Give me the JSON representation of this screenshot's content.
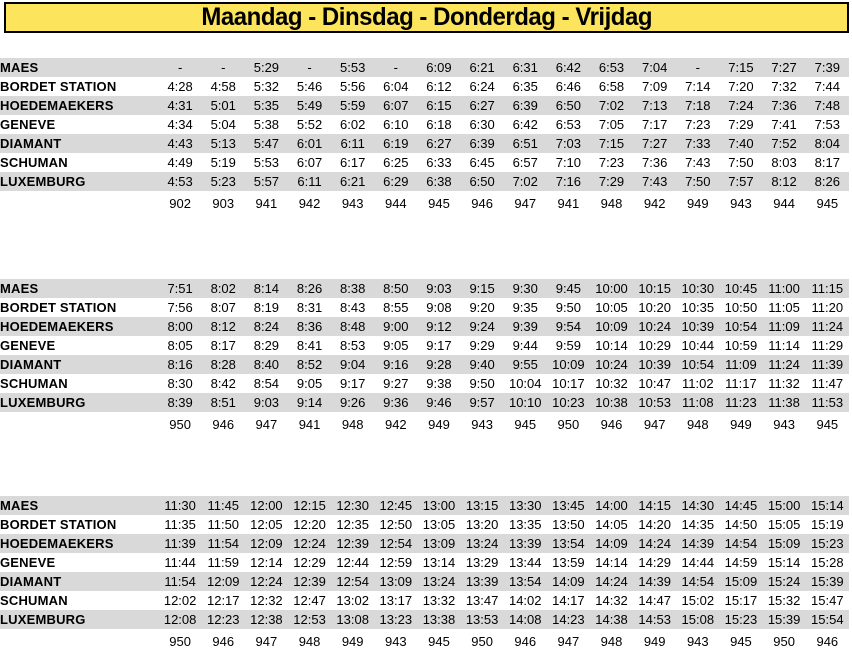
{
  "header": {
    "title": "Maandag - Dinsdag - Donderdag - Vrijdag"
  },
  "colors": {
    "banner_bg": "#FCE45C",
    "banner_border": "#000000",
    "row_alt_bg": "#D9D9D9",
    "text": "#000000"
  },
  "stations": [
    "MAES",
    "BORDET STATION",
    "HOEDEMAEKERS",
    "GENEVE",
    "DIAMANT",
    "SCHUMAN",
    "LUXEMBURG"
  ],
  "tables": [
    {
      "rows": [
        {
          "station": "MAES",
          "times": [
            "-",
            "-",
            "5:29",
            "-",
            "5:53",
            "-",
            "6:09",
            "6:21",
            "6:31",
            "6:42",
            "6:53",
            "7:04",
            "-",
            "7:15",
            "7:27",
            "7:39"
          ]
        },
        {
          "station": "BORDET STATION",
          "times": [
            "4:28",
            "4:58",
            "5:32",
            "5:46",
            "5:56",
            "6:04",
            "6:12",
            "6:24",
            "6:35",
            "6:46",
            "6:58",
            "7:09",
            "7:14",
            "7:20",
            "7:32",
            "7:44"
          ]
        },
        {
          "station": "HOEDEMAEKERS",
          "times": [
            "4:31",
            "5:01",
            "5:35",
            "5:49",
            "5:59",
            "6:07",
            "6:15",
            "6:27",
            "6:39",
            "6:50",
            "7:02",
            "7:13",
            "7:18",
            "7:24",
            "7:36",
            "7:48"
          ]
        },
        {
          "station": "GENEVE",
          "times": [
            "4:34",
            "5:04",
            "5:38",
            "5:52",
            "6:02",
            "6:10",
            "6:18",
            "6:30",
            "6:42",
            "6:53",
            "7:05",
            "7:17",
            "7:23",
            "7:29",
            "7:41",
            "7:53"
          ]
        },
        {
          "station": "DIAMANT",
          "times": [
            "4:43",
            "5:13",
            "5:47",
            "6:01",
            "6:11",
            "6:19",
            "6:27",
            "6:39",
            "6:51",
            "7:03",
            "7:15",
            "7:27",
            "7:33",
            "7:40",
            "7:52",
            "8:04"
          ]
        },
        {
          "station": "SCHUMAN",
          "times": [
            "4:49",
            "5:19",
            "5:53",
            "6:07",
            "6:17",
            "6:25",
            "6:33",
            "6:45",
            "6:57",
            "7:10",
            "7:23",
            "7:36",
            "7:43",
            "7:50",
            "8:03",
            "8:17"
          ]
        },
        {
          "station": "LUXEMBURG",
          "times": [
            "4:53",
            "5:23",
            "5:57",
            "6:11",
            "6:21",
            "6:29",
            "6:38",
            "6:50",
            "7:02",
            "7:16",
            "7:29",
            "7:43",
            "7:50",
            "7:57",
            "8:12",
            "8:26"
          ]
        }
      ],
      "route_numbers": [
        "902",
        "903",
        "941",
        "942",
        "943",
        "944",
        "945",
        "946",
        "947",
        "941",
        "948",
        "942",
        "949",
        "943",
        "944",
        "945"
      ]
    },
    {
      "rows": [
        {
          "station": "MAES",
          "times": [
            "7:51",
            "8:02",
            "8:14",
            "8:26",
            "8:38",
            "8:50",
            "9:03",
            "9:15",
            "9:30",
            "9:45",
            "10:00",
            "10:15",
            "10:30",
            "10:45",
            "11:00",
            "11:15"
          ]
        },
        {
          "station": "BORDET STATION",
          "times": [
            "7:56",
            "8:07",
            "8:19",
            "8:31",
            "8:43",
            "8:55",
            "9:08",
            "9:20",
            "9:35",
            "9:50",
            "10:05",
            "10:20",
            "10:35",
            "10:50",
            "11:05",
            "11:20"
          ]
        },
        {
          "station": "HOEDEMAEKERS",
          "times": [
            "8:00",
            "8:12",
            "8:24",
            "8:36",
            "8:48",
            "9:00",
            "9:12",
            "9:24",
            "9:39",
            "9:54",
            "10:09",
            "10:24",
            "10:39",
            "10:54",
            "11:09",
            "11:24"
          ]
        },
        {
          "station": "GENEVE",
          "times": [
            "8:05",
            "8:17",
            "8:29",
            "8:41",
            "8:53",
            "9:05",
            "9:17",
            "9:29",
            "9:44",
            "9:59",
            "10:14",
            "10:29",
            "10:44",
            "10:59",
            "11:14",
            "11:29"
          ]
        },
        {
          "station": "DIAMANT",
          "times": [
            "8:16",
            "8:28",
            "8:40",
            "8:52",
            "9:04",
            "9:16",
            "9:28",
            "9:40",
            "9:55",
            "10:09",
            "10:24",
            "10:39",
            "10:54",
            "11:09",
            "11:24",
            "11:39"
          ]
        },
        {
          "station": "SCHUMAN",
          "times": [
            "8:30",
            "8:42",
            "8:54",
            "9:05",
            "9:17",
            "9:27",
            "9:38",
            "9:50",
            "10:04",
            "10:17",
            "10:32",
            "10:47",
            "11:02",
            "11:17",
            "11:32",
            "11:47"
          ]
        },
        {
          "station": "LUXEMBURG",
          "times": [
            "8:39",
            "8:51",
            "9:03",
            "9:14",
            "9:26",
            "9:36",
            "9:46",
            "9:57",
            "10:10",
            "10:23",
            "10:38",
            "10:53",
            "11:08",
            "11:23",
            "11:38",
            "11:53"
          ]
        }
      ],
      "route_numbers": [
        "950",
        "946",
        "947",
        "941",
        "948",
        "942",
        "949",
        "943",
        "945",
        "950",
        "946",
        "947",
        "948",
        "949",
        "943",
        "945"
      ]
    },
    {
      "rows": [
        {
          "station": "MAES",
          "times": [
            "11:30",
            "11:45",
            "12:00",
            "12:15",
            "12:30",
            "12:45",
            "13:00",
            "13:15",
            "13:30",
            "13:45",
            "14:00",
            "14:15",
            "14:30",
            "14:45",
            "15:00",
            "15:14"
          ]
        },
        {
          "station": "BORDET STATION",
          "times": [
            "11:35",
            "11:50",
            "12:05",
            "12:20",
            "12:35",
            "12:50",
            "13:05",
            "13:20",
            "13:35",
            "13:50",
            "14:05",
            "14:20",
            "14:35",
            "14:50",
            "15:05",
            "15:19"
          ]
        },
        {
          "station": "HOEDEMAEKERS",
          "times": [
            "11:39",
            "11:54",
            "12:09",
            "12:24",
            "12:39",
            "12:54",
            "13:09",
            "13:24",
            "13:39",
            "13:54",
            "14:09",
            "14:24",
            "14:39",
            "14:54",
            "15:09",
            "15:23"
          ]
        },
        {
          "station": "GENEVE",
          "times": [
            "11:44",
            "11:59",
            "12:14",
            "12:29",
            "12:44",
            "12:59",
            "13:14",
            "13:29",
            "13:44",
            "13:59",
            "14:14",
            "14:29",
            "14:44",
            "14:59",
            "15:14",
            "15:28"
          ]
        },
        {
          "station": "DIAMANT",
          "times": [
            "11:54",
            "12:09",
            "12:24",
            "12:39",
            "12:54",
            "13:09",
            "13:24",
            "13:39",
            "13:54",
            "14:09",
            "14:24",
            "14:39",
            "14:54",
            "15:09",
            "15:24",
            "15:39"
          ]
        },
        {
          "station": "SCHUMAN",
          "times": [
            "12:02",
            "12:17",
            "12:32",
            "12:47",
            "13:02",
            "13:17",
            "13:32",
            "13:47",
            "14:02",
            "14:17",
            "14:32",
            "14:47",
            "15:02",
            "15:17",
            "15:32",
            "15:47"
          ]
        },
        {
          "station": "LUXEMBURG",
          "times": [
            "12:08",
            "12:23",
            "12:38",
            "12:53",
            "13:08",
            "13:23",
            "13:38",
            "13:53",
            "14:08",
            "14:23",
            "14:38",
            "14:53",
            "15:08",
            "15:23",
            "15:39",
            "15:54"
          ]
        }
      ],
      "route_numbers": [
        "950",
        "946",
        "947",
        "948",
        "949",
        "943",
        "945",
        "950",
        "946",
        "947",
        "948",
        "949",
        "943",
        "945",
        "950",
        "946"
      ]
    }
  ]
}
